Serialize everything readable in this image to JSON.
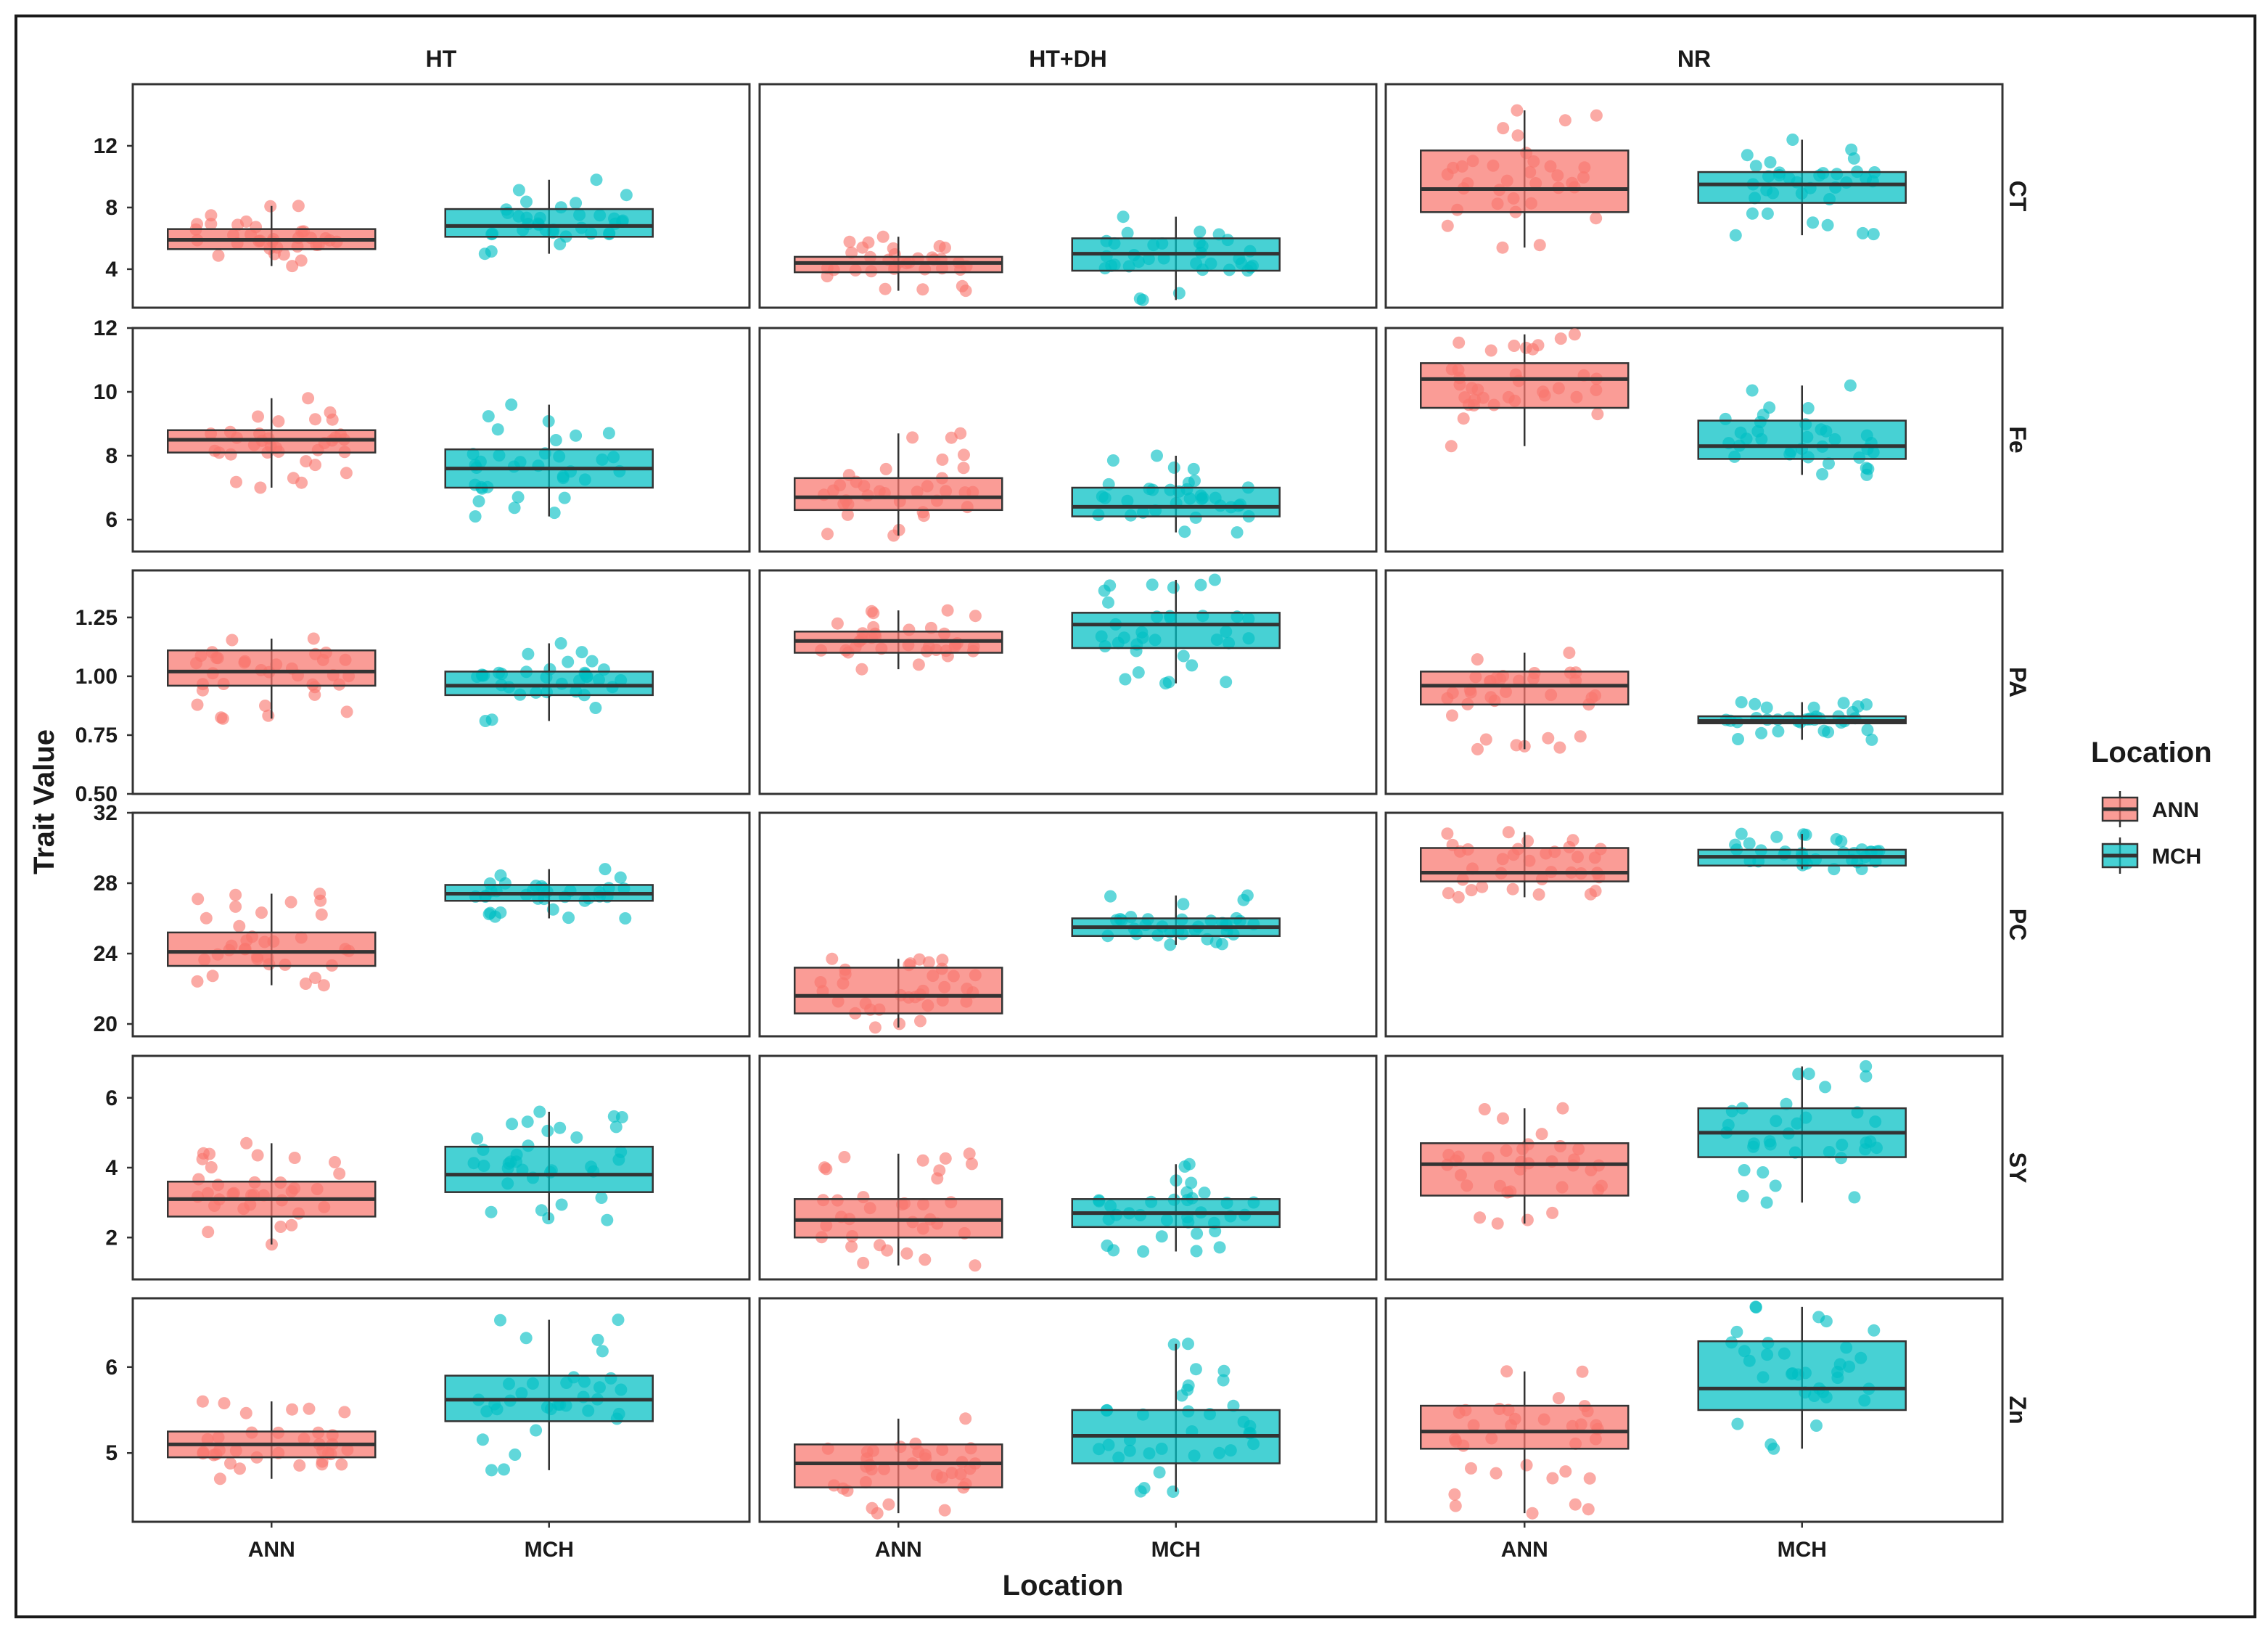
{
  "chart_data": {
    "type": "boxplot",
    "facet_columns": [
      "HT",
      "HT+DH",
      "NR"
    ],
    "facet_rows": [
      "CT",
      "Fe",
      "PA",
      "PC",
      "SY",
      "Zn"
    ],
    "xlabel": "Location",
    "ylabel": "Trait Value",
    "categories": [
      "ANN",
      "MCH"
    ],
    "legend": {
      "title": "Location",
      "position": "right",
      "entries": [
        {
          "name": "ANN",
          "color": "#F8766D"
        },
        {
          "name": "MCH",
          "color": "#00BFC4"
        }
      ]
    },
    "rows": [
      {
        "trait": "CT",
        "ylim": [
          1.5,
          16.0
        ],
        "ticks": [
          "4",
          "8",
          "12"
        ],
        "tick_values": [
          4,
          8,
          12
        ],
        "panels": [
          {
            "facet": "HT",
            "boxes": [
              {
                "group": "ANN",
                "whisker_low": 4.2,
                "q1": 5.3,
                "median": 5.9,
                "q3": 6.6,
                "whisker_high": 8.1
              },
              {
                "group": "MCH",
                "whisker_low": 5.0,
                "q1": 6.1,
                "median": 6.8,
                "q3": 7.9,
                "whisker_high": 9.8
              }
            ]
          },
          {
            "facet": "HT+DH",
            "boxes": [
              {
                "group": "ANN",
                "whisker_low": 2.6,
                "q1": 3.8,
                "median": 4.4,
                "q3": 4.8,
                "whisker_high": 6.1
              },
              {
                "group": "MCH",
                "whisker_low": 2.0,
                "q1": 3.9,
                "median": 5.0,
                "q3": 6.0,
                "whisker_high": 7.4
              }
            ]
          },
          {
            "facet": "NR",
            "boxes": [
              {
                "group": "ANN",
                "whisker_low": 5.4,
                "q1": 7.7,
                "median": 9.2,
                "q3": 11.7,
                "whisker_high": 14.3
              },
              {
                "group": "MCH",
                "whisker_low": 6.2,
                "q1": 8.3,
                "median": 9.5,
                "q3": 10.3,
                "whisker_high": 12.4
              }
            ]
          }
        ]
      },
      {
        "trait": "Fe",
        "ylim": [
          5.0,
          12.0
        ],
        "ticks": [
          "6",
          "8",
          "10",
          "12"
        ],
        "tick_values": [
          6,
          8,
          10,
          12
        ],
        "panels": [
          {
            "facet": "HT",
            "boxes": [
              {
                "group": "ANN",
                "whisker_low": 7.0,
                "q1": 8.1,
                "median": 8.5,
                "q3": 8.8,
                "whisker_high": 9.8
              },
              {
                "group": "MCH",
                "whisker_low": 6.1,
                "q1": 7.0,
                "median": 7.6,
                "q3": 8.2,
                "whisker_high": 9.6
              }
            ]
          },
          {
            "facet": "HT+DH",
            "boxes": [
              {
                "group": "ANN",
                "whisker_low": 5.5,
                "q1": 6.3,
                "median": 6.7,
                "q3": 7.3,
                "whisker_high": 8.7
              },
              {
                "group": "MCH",
                "whisker_low": 5.6,
                "q1": 6.1,
                "median": 6.4,
                "q3": 7.0,
                "whisker_high": 8.0
              }
            ]
          },
          {
            "facet": "NR",
            "boxes": [
              {
                "group": "ANN",
                "whisker_low": 8.3,
                "q1": 9.5,
                "median": 10.4,
                "q3": 10.9,
                "whisker_high": 11.8
              },
              {
                "group": "MCH",
                "whisker_low": 7.4,
                "q1": 7.9,
                "median": 8.3,
                "q3": 9.1,
                "whisker_high": 10.2
              }
            ]
          }
        ]
      },
      {
        "trait": "PA",
        "ylim": [
          0.5,
          1.45
        ],
        "ticks": [
          "0.50",
          "0.75",
          "1.00",
          "1.25"
        ],
        "tick_values": [
          0.5,
          0.75,
          1.0,
          1.25
        ],
        "panels": [
          {
            "facet": "HT",
            "boxes": [
              {
                "group": "ANN",
                "whisker_low": 0.82,
                "q1": 0.96,
                "median": 1.02,
                "q3": 1.11,
                "whisker_high": 1.16
              },
              {
                "group": "MCH",
                "whisker_low": 0.81,
                "q1": 0.92,
                "median": 0.96,
                "q3": 1.02,
                "whisker_high": 1.14
              }
            ]
          },
          {
            "facet": "HT+DH",
            "boxes": [
              {
                "group": "ANN",
                "whisker_low": 1.03,
                "q1": 1.1,
                "median": 1.15,
                "q3": 1.19,
                "whisker_high": 1.28
              },
              {
                "group": "MCH",
                "whisker_low": 0.97,
                "q1": 1.12,
                "median": 1.22,
                "q3": 1.27,
                "whisker_high": 1.41
              }
            ]
          },
          {
            "facet": "NR",
            "boxes": [
              {
                "group": "ANN",
                "whisker_low": 0.69,
                "q1": 0.88,
                "median": 0.96,
                "q3": 1.02,
                "whisker_high": 1.1
              },
              {
                "group": "MCH",
                "whisker_low": 0.73,
                "q1": 0.8,
                "median": 0.81,
                "q3": 0.83,
                "whisker_high": 0.89
              }
            ]
          }
        ]
      },
      {
        "trait": "PC",
        "ylim": [
          19.3,
          32.0
        ],
        "ticks": [
          "20",
          "24",
          "28",
          "32"
        ],
        "tick_values": [
          20,
          24,
          28,
          32
        ],
        "panels": [
          {
            "facet": "HT",
            "boxes": [
              {
                "group": "ANN",
                "whisker_low": 22.2,
                "q1": 23.3,
                "median": 24.1,
                "q3": 25.2,
                "whisker_high": 27.4
              },
              {
                "group": "MCH",
                "whisker_low": 26.0,
                "q1": 27.0,
                "median": 27.4,
                "q3": 27.9,
                "whisker_high": 28.8
              }
            ]
          },
          {
            "facet": "HT+DH",
            "boxes": [
              {
                "group": "ANN",
                "whisker_low": 19.8,
                "q1": 20.6,
                "median": 21.6,
                "q3": 23.2,
                "whisker_high": 23.7
              },
              {
                "group": "MCH",
                "whisker_low": 24.5,
                "q1": 25.0,
                "median": 25.5,
                "q3": 26.0,
                "whisker_high": 27.3
              }
            ]
          },
          {
            "facet": "NR",
            "boxes": [
              {
                "group": "ANN",
                "whisker_low": 27.2,
                "q1": 28.1,
                "median": 28.6,
                "q3": 30.0,
                "whisker_high": 30.9
              },
              {
                "group": "MCH",
                "whisker_low": 28.8,
                "q1": 29.0,
                "median": 29.5,
                "q3": 29.9,
                "whisker_high": 30.8
              }
            ]
          }
        ]
      },
      {
        "trait": "SY",
        "ylim": [
          0.8,
          7.2
        ],
        "ticks": [
          "2",
          "4",
          "6"
        ],
        "tick_values": [
          2,
          4,
          6
        ],
        "panels": [
          {
            "facet": "HT",
            "boxes": [
              {
                "group": "ANN",
                "whisker_low": 1.8,
                "q1": 2.6,
                "median": 3.1,
                "q3": 3.6,
                "whisker_high": 4.7
              },
              {
                "group": "MCH",
                "whisker_low": 2.5,
                "q1": 3.3,
                "median": 3.8,
                "q3": 4.6,
                "whisker_high": 5.6
              }
            ]
          },
          {
            "facet": "HT+DH",
            "boxes": [
              {
                "group": "ANN",
                "whisker_low": 1.2,
                "q1": 2.0,
                "median": 2.5,
                "q3": 3.1,
                "whisker_high": 4.4
              },
              {
                "group": "MCH",
                "whisker_low": 1.6,
                "q1": 2.3,
                "median": 2.7,
                "q3": 3.1,
                "whisker_high": 4.1
              }
            ]
          },
          {
            "facet": "NR",
            "boxes": [
              {
                "group": "ANN",
                "whisker_low": 2.4,
                "q1": 3.2,
                "median": 4.1,
                "q3": 4.7,
                "whisker_high": 5.7
              },
              {
                "group": "MCH",
                "whisker_low": 3.0,
                "q1": 4.3,
                "median": 5.0,
                "q3": 5.7,
                "whisker_high": 6.9
              }
            ]
          }
        ]
      },
      {
        "trait": "Zn",
        "ylim": [
          4.2,
          6.8
        ],
        "ticks": [
          "5",
          "6"
        ],
        "tick_values": [
          5,
          6
        ],
        "panels": [
          {
            "facet": "HT",
            "boxes": [
              {
                "group": "ANN",
                "whisker_low": 4.7,
                "q1": 4.95,
                "median": 5.1,
                "q3": 5.25,
                "whisker_high": 5.6
              },
              {
                "group": "MCH",
                "whisker_low": 4.8,
                "q1": 5.37,
                "median": 5.62,
                "q3": 5.9,
                "whisker_high": 6.55
              }
            ]
          },
          {
            "facet": "HT+DH",
            "boxes": [
              {
                "group": "ANN",
                "whisker_low": 4.3,
                "q1": 4.6,
                "median": 4.88,
                "q3": 5.1,
                "whisker_high": 5.4
              },
              {
                "group": "MCH",
                "whisker_low": 4.55,
                "q1": 4.88,
                "median": 5.2,
                "q3": 5.5,
                "whisker_high": 6.27
              }
            ]
          },
          {
            "facet": "NR",
            "boxes": [
              {
                "group": "ANN",
                "whisker_low": 4.3,
                "q1": 5.05,
                "median": 5.25,
                "q3": 5.55,
                "whisker_high": 5.95
              },
              {
                "group": "MCH",
                "whisker_low": 5.05,
                "q1": 5.5,
                "median": 5.75,
                "q3": 6.3,
                "whisker_high": 6.7
              }
            ]
          }
        ]
      }
    ]
  }
}
